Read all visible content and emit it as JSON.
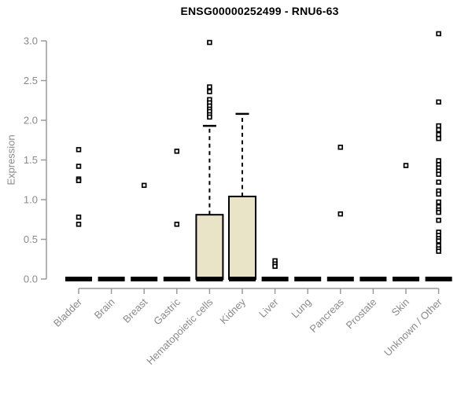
{
  "chart_data": {
    "type": "boxplot",
    "title": "ENSG00000252499 - RNU6-63",
    "ylabel": "Expression",
    "xlabel": "",
    "ylim": [
      0,
      3.1
    ],
    "yticks": [
      "0.0",
      "0.5",
      "1.0",
      "1.5",
      "2.0",
      "2.5",
      "3.0"
    ],
    "ytick_values": [
      0.0,
      0.5,
      1.0,
      1.5,
      2.0,
      2.5,
      3.0
    ],
    "grid": false,
    "legend": "none",
    "categories": [
      "Bladder",
      "Brain",
      "Breast",
      "Gastric",
      "Hematopoietic cells",
      "Kidney",
      "Liver",
      "Lung",
      "Pancreas",
      "Prostate",
      "Skin",
      "Unknown / Other"
    ],
    "boxes": [
      {
        "category": "Bladder",
        "q1": 0,
        "median": 0,
        "q3": 0,
        "whisker_low": 0,
        "whisker_high": 0,
        "outliers": [
          1.63,
          1.42,
          1.26,
          1.24,
          0.78,
          0.69
        ]
      },
      {
        "category": "Brain",
        "q1": 0,
        "median": 0,
        "q3": 0,
        "whisker_low": 0,
        "whisker_high": 0,
        "outliers": []
      },
      {
        "category": "Breast",
        "q1": 0,
        "median": 0,
        "q3": 0,
        "whisker_low": 0,
        "whisker_high": 0,
        "outliers": [
          1.18
        ]
      },
      {
        "category": "Gastric",
        "q1": 0,
        "median": 0,
        "q3": 0,
        "whisker_low": 0,
        "whisker_high": 0,
        "outliers": [
          1.61,
          0.69
        ]
      },
      {
        "category": "Hematopoietic cells",
        "q1": 0,
        "median": 0,
        "q3": 0.81,
        "whisker_low": 0,
        "whisker_high": 1.93,
        "outliers": [
          2.98,
          2.42,
          2.36,
          2.26,
          2.22,
          2.18,
          2.14,
          2.11,
          2.07,
          2.04
        ]
      },
      {
        "category": "Kidney",
        "q1": 0,
        "median": 0,
        "q3": 1.04,
        "whisker_low": 0,
        "whisker_high": 2.08,
        "outliers": []
      },
      {
        "category": "Liver",
        "q1": 0,
        "median": 0,
        "q3": 0,
        "whisker_low": 0,
        "whisker_high": 0,
        "outliers": [
          0.23,
          0.19,
          0.16
        ]
      },
      {
        "category": "Lung",
        "q1": 0,
        "median": 0,
        "q3": 0,
        "whisker_low": 0,
        "whisker_high": 0,
        "outliers": []
      },
      {
        "category": "Pancreas",
        "q1": 0,
        "median": 0,
        "q3": 0,
        "whisker_low": 0,
        "whisker_high": 0,
        "outliers": [
          1.66,
          0.82
        ]
      },
      {
        "category": "Prostate",
        "q1": 0,
        "median": 0,
        "q3": 0,
        "whisker_low": 0,
        "whisker_high": 0,
        "outliers": []
      },
      {
        "category": "Skin",
        "q1": 0,
        "median": 0,
        "q3": 0,
        "whisker_low": 0,
        "whisker_high": 0,
        "outliers": [
          1.43
        ]
      },
      {
        "category": "Unknown / Other",
        "q1": 0,
        "median": 0,
        "q3": 0,
        "whisker_low": 0,
        "whisker_high": 0,
        "outliers": [
          3.09,
          2.23,
          1.93,
          1.88,
          1.82,
          1.77,
          1.49,
          1.44,
          1.4,
          1.36,
          1.32,
          1.22,
          1.11,
          1.07,
          0.97,
          0.91,
          0.87,
          0.84,
          0.74,
          0.59,
          0.55,
          0.51,
          0.48,
          0.42,
          0.38,
          0.35
        ]
      }
    ],
    "colors": {
      "box_fill": "#e9e3c7",
      "box_border": "#000000",
      "median": "#000000",
      "whisker": "#000000",
      "outlier": "#000000",
      "axis_line": "#9a9a9a",
      "tick_label": "#8a8a8a",
      "title": "#000000",
      "background": "#ffffff"
    }
  }
}
